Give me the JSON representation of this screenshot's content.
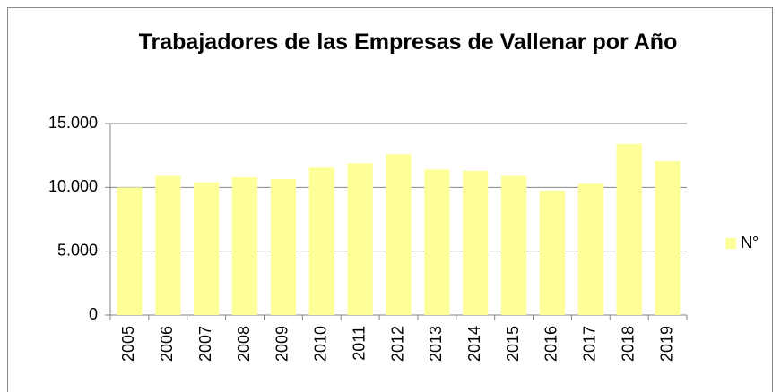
{
  "chart_data": {
    "type": "bar",
    "title": "Trabajadores de las Empresas de Vallenar por Año",
    "categories": [
      "2005",
      "2006",
      "2007",
      "2008",
      "2009",
      "2010",
      "2011",
      "2012",
      "2013",
      "2014",
      "2015",
      "2016",
      "2017",
      "2018",
      "2019"
    ],
    "series": [
      {
        "name": "N°",
        "color": "#ffff9a",
        "values": [
          10000,
          10900,
          10400,
          10800,
          10650,
          11550,
          11900,
          12600,
          11400,
          11300,
          10900,
          9750,
          10300,
          13400,
          12050
        ]
      }
    ],
    "ylim": [
      0,
      15000
    ],
    "yticks": [
      0,
      {
        "value": 5000,
        "label": "5.000"
      },
      {
        "value": 10000,
        "label": "10.000"
      },
      {
        "value": 15000,
        "label": "15.000"
      }
    ],
    "grid": true,
    "legend": "right"
  }
}
